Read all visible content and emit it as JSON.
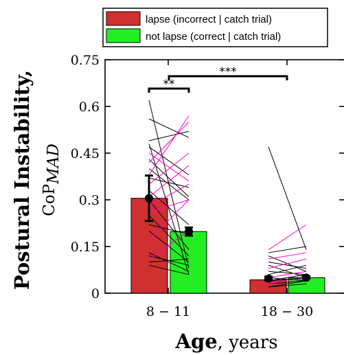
{
  "chart_data": {
    "type": "bar",
    "categories": [
      "8 − 11",
      "18 − 30"
    ],
    "series": [
      {
        "name": "lapse (incorrect | catch trial)",
        "color": "#d03030",
        "values": [
          0.305,
          0.043
        ],
        "mean_marker": [
          0.305,
          0.047
        ],
        "error": [
          0.073,
          0.006
        ]
      },
      {
        "name": "not lapse (correct | catch trial)",
        "color": "#22ee22",
        "values": [
          0.198,
          0.05
        ],
        "mean_marker": [
          0.198,
          0.05
        ],
        "error": [
          0.013,
          0.004
        ]
      }
    ],
    "ylim": [
      0,
      0.75
    ],
    "yticks": [
      0,
      0.15,
      0.3,
      0.45,
      0.6,
      0.75
    ],
    "ytick_labels": [
      "0",
      "0.15",
      "0.3",
      "0.45",
      "0.6",
      "0.75"
    ],
    "ylabel": "Postural Instability,",
    "ylabel_sub": "CoP",
    "ylabel_sub_script": "MAD",
    "xlabel": "Age",
    "xlabel_suffix": ", years",
    "legend_position": "top",
    "significance": [
      {
        "label": "**",
        "from": "lapse 8-11",
        "to": "not lapse 8-11"
      },
      {
        "label": "***",
        "from": "8-11",
        "to": "18-30"
      }
    ],
    "subject_lines": {
      "color_black": "#000000",
      "color_magenta": "#ff00cc",
      "group1": [
        [
          0.62,
          0.08,
          "k"
        ],
        [
          0.56,
          0.5,
          "k"
        ],
        [
          0.49,
          0.52,
          "k"
        ],
        [
          0.48,
          0.06,
          "k"
        ],
        [
          0.47,
          0.38,
          "k"
        ],
        [
          0.45,
          0.36,
          "m"
        ],
        [
          0.43,
          0.31,
          "k"
        ],
        [
          0.42,
          0.55,
          "m"
        ],
        [
          0.4,
          0.3,
          "k"
        ],
        [
          0.38,
          0.57,
          "m"
        ],
        [
          0.37,
          0.34,
          "k"
        ],
        [
          0.35,
          0.45,
          "m"
        ],
        [
          0.33,
          0.22,
          "k"
        ],
        [
          0.31,
          0.41,
          "m"
        ],
        [
          0.3,
          0.14,
          "k"
        ],
        [
          0.28,
          0.35,
          "m"
        ],
        [
          0.26,
          0.3,
          "m"
        ],
        [
          0.25,
          0.12,
          "k"
        ],
        [
          0.22,
          0.19,
          "k"
        ],
        [
          0.2,
          0.1,
          "k"
        ],
        [
          0.17,
          0.3,
          "m"
        ],
        [
          0.13,
          0.07,
          "k"
        ],
        [
          0.12,
          0.09,
          "k"
        ],
        [
          0.11,
          0.2,
          "m"
        ],
        [
          0.1,
          0.11,
          "k"
        ],
        [
          0.09,
          0.06,
          "k"
        ]
      ],
      "group2": [
        [
          0.47,
          0.14,
          "k"
        ],
        [
          0.14,
          0.22,
          "m"
        ],
        [
          0.13,
          0.15,
          "k"
        ],
        [
          0.12,
          0.07,
          "k"
        ],
        [
          0.11,
          0.13,
          "m"
        ],
        [
          0.1,
          0.08,
          "k"
        ],
        [
          0.09,
          0.05,
          "k"
        ],
        [
          0.08,
          0.11,
          "m"
        ],
        [
          0.07,
          0.06,
          "k"
        ],
        [
          0.06,
          0.09,
          "k"
        ],
        [
          0.05,
          0.04,
          "k"
        ],
        [
          0.05,
          0.07,
          "m"
        ],
        [
          0.04,
          0.05,
          "k"
        ],
        [
          0.04,
          0.06,
          "k"
        ],
        [
          0.03,
          0.04,
          "k"
        ],
        [
          0.03,
          0.05,
          "m"
        ],
        [
          0.02,
          0.03,
          "k"
        ],
        [
          0.02,
          0.04,
          "k"
        ]
      ]
    }
  }
}
